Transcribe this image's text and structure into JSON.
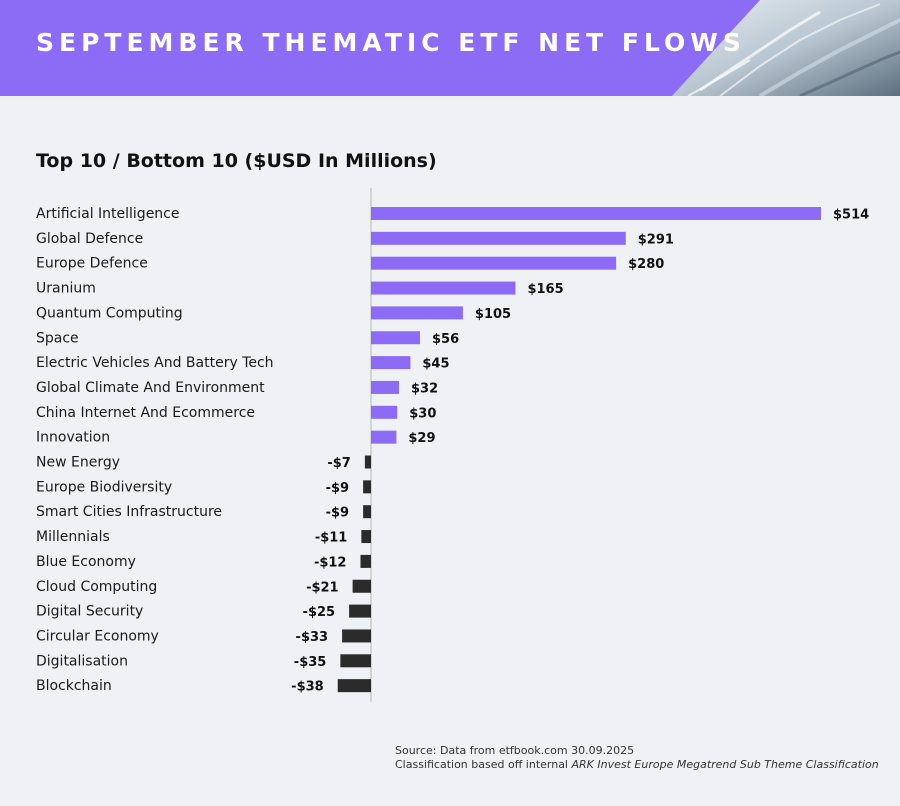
{
  "header": {
    "title": "SEPTEMBER THEMATIC ETF NET FLOWS"
  },
  "colors": {
    "banner": "#8c6cf4",
    "positive": "#8c6cf4",
    "negative": "#2b2b2b",
    "background": "#f0f1f5"
  },
  "chart_data": {
    "type": "bar",
    "orientation": "horizontal",
    "title": "Top 10 / Bottom 10 ($USD In Millions)",
    "xlabel": "",
    "ylabel": "",
    "unit": "$USD millions",
    "grid": false,
    "legend": "none",
    "xlim": [
      -38,
      514
    ],
    "categories": [
      "Artificial Intelligence",
      "Global Defence",
      "Europe Defence",
      "Uranium",
      "Quantum Computing",
      "Space",
      "Electric Vehicles And Battery Tech",
      "Global Climate And Environment",
      "China Internet And Ecommerce",
      "Innovation",
      "New Energy",
      "Europe Biodiversity",
      "Smart Cities Infrastructure",
      "Millennials",
      "Blue Economy",
      "Cloud Computing",
      "Digital Security",
      "Circular Economy",
      "Digitalisation",
      "Blockchain"
    ],
    "values": [
      514,
      291,
      280,
      165,
      105,
      56,
      45,
      32,
      30,
      29,
      -7,
      -9,
      -9,
      -11,
      -12,
      -21,
      -25,
      -33,
      -35,
      -38
    ],
    "value_labels": [
      "$514",
      "$291",
      "$280",
      "$165",
      "$105",
      "$56",
      "$45",
      "$32",
      "$30",
      "$29",
      "-$7",
      "-$9",
      "-$9",
      "-$11",
      "-$12",
      "-$21",
      "-$25",
      "-$33",
      "-$35",
      "-$38"
    ]
  },
  "footer": {
    "source": "Source: Data from etfbook.com 30.09.2025",
    "classification_prefix": "Classification based off internal ",
    "classification_emphasis": "ARK Invest Europe Megatrend Sub Theme Classification"
  }
}
